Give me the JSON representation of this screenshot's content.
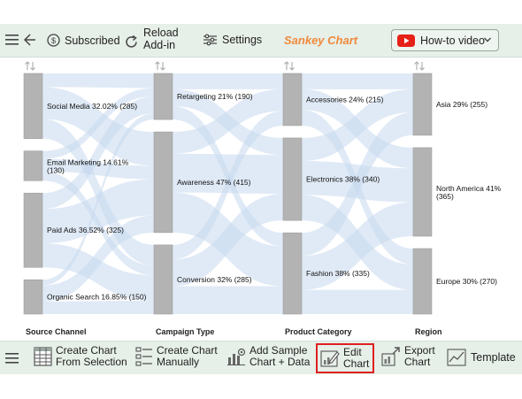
{
  "toolbar": {
    "subscribed_label": "Subscribed",
    "reload_label_line1": "Reload",
    "reload_label_line2": "Add-in",
    "settings_label": "Settings",
    "app_title": "Sankey Chart",
    "howto_label": "How-to video"
  },
  "bottom_toolbar": {
    "create_selection_line1": "Create Chart",
    "create_selection_line2": "From Selection",
    "create_manual_line1": "Create Chart",
    "create_manual_line2": "Manually",
    "add_sample_line1": "Add Sample",
    "add_sample_line2": "Chart + Data",
    "edit_line1": "Edit",
    "edit_line2": "Chart",
    "export_line1": "Export",
    "export_line2": "Chart",
    "template_label": "Template"
  },
  "colors": {
    "toolbar_bg": "#e6efe8",
    "title_orange": "#f08a3c",
    "node_gray": "#b3b3b3",
    "link_blue": "#c7d8ee",
    "highlight_red": "#e0201f",
    "youtube_red": "#e62117"
  },
  "chart_data": {
    "type": "sankey",
    "columns": [
      {
        "label": "Source Channel",
        "nodes": [
          {
            "name": "Social Media",
            "label_line1": "Social Media 32.02% (285)",
            "label_line2": "",
            "value": 285
          },
          {
            "name": "Email Marketing",
            "label_line1": "Email Marketing 14.61%",
            "label_line2": "(130)",
            "value": 130
          },
          {
            "name": "Paid Ads",
            "label_line1": "Paid Ads 36.52% (325)",
            "label_line2": "",
            "value": 325
          },
          {
            "name": "Organic Search",
            "label_line1": "Organic Search 16.85% (150)",
            "label_line2": "",
            "value": 150
          }
        ]
      },
      {
        "label": "Campaign Type",
        "nodes": [
          {
            "name": "Retargeting",
            "label_line1": "Retargeting 21% (190)",
            "label_line2": "",
            "value": 190
          },
          {
            "name": "Awareness",
            "label_line1": "Awareness 47% (415)",
            "label_line2": "",
            "value": 415
          },
          {
            "name": "Conversion",
            "label_line1": "Conversion 32% (285)",
            "label_line2": "",
            "value": 285
          }
        ]
      },
      {
        "label": "Product Category",
        "nodes": [
          {
            "name": "Accessories",
            "label_line1": "Accessories 24% (215)",
            "label_line2": "",
            "value": 215
          },
          {
            "name": "Electronics",
            "label_line1": "Electronics 38% (340)",
            "label_line2": "",
            "value": 340
          },
          {
            "name": "Fashion",
            "label_line1": "Fashion 38% (335)",
            "label_line2": "",
            "value": 335
          }
        ]
      },
      {
        "label": "Region",
        "nodes": [
          {
            "name": "Asia",
            "label_line1": "Asia 29% (255)",
            "label_line2": "",
            "value": 255
          },
          {
            "name": "North America",
            "label_line1": "North America 41%",
            "label_line2": "(365)",
            "value": 365
          },
          {
            "name": "Europe",
            "label_line1": "Europe 30% (270)",
            "label_line2": "",
            "value": 270
          }
        ]
      }
    ],
    "links": [
      {
        "source": "Social Media",
        "target": "Retargeting",
        "value": 60
      },
      {
        "source": "Social Media",
        "target": "Awareness",
        "value": 140
      },
      {
        "source": "Social Media",
        "target": "Conversion",
        "value": 85
      },
      {
        "source": "Email Marketing",
        "target": "Retargeting",
        "value": 35
      },
      {
        "source": "Email Marketing",
        "target": "Awareness",
        "value": 55
      },
      {
        "source": "Email Marketing",
        "target": "Conversion",
        "value": 40
      },
      {
        "source": "Paid Ads",
        "target": "Retargeting",
        "value": 70
      },
      {
        "source": "Paid Ads",
        "target": "Awareness",
        "value": 150
      },
      {
        "source": "Paid Ads",
        "target": "Conversion",
        "value": 105
      },
      {
        "source": "Organic Search",
        "target": "Retargeting",
        "value": 25
      },
      {
        "source": "Organic Search",
        "target": "Awareness",
        "value": 70
      },
      {
        "source": "Organic Search",
        "target": "Conversion",
        "value": 55
      },
      {
        "source": "Retargeting",
        "target": "Accessories",
        "value": 65
      },
      {
        "source": "Retargeting",
        "target": "Electronics",
        "value": 70
      },
      {
        "source": "Retargeting",
        "target": "Fashion",
        "value": 55
      },
      {
        "source": "Awareness",
        "target": "Accessories",
        "value": 90
      },
      {
        "source": "Awareness",
        "target": "Electronics",
        "value": 160
      },
      {
        "source": "Awareness",
        "target": "Fashion",
        "value": 165
      },
      {
        "source": "Conversion",
        "target": "Accessories",
        "value": 60
      },
      {
        "source": "Conversion",
        "target": "Electronics",
        "value": 110
      },
      {
        "source": "Conversion",
        "target": "Fashion",
        "value": 115
      },
      {
        "source": "Accessories",
        "target": "Asia",
        "value": 65
      },
      {
        "source": "Accessories",
        "target": "North America",
        "value": 85
      },
      {
        "source": "Accessories",
        "target": "Europe",
        "value": 65
      },
      {
        "source": "Electronics",
        "target": "Asia",
        "value": 95
      },
      {
        "source": "Electronics",
        "target": "North America",
        "value": 140
      },
      {
        "source": "Electronics",
        "target": "Europe",
        "value": 105
      },
      {
        "source": "Fashion",
        "target": "Asia",
        "value": 95
      },
      {
        "source": "Fashion",
        "target": "North America",
        "value": 140
      },
      {
        "source": "Fashion",
        "target": "Europe",
        "value": 100
      }
    ]
  }
}
